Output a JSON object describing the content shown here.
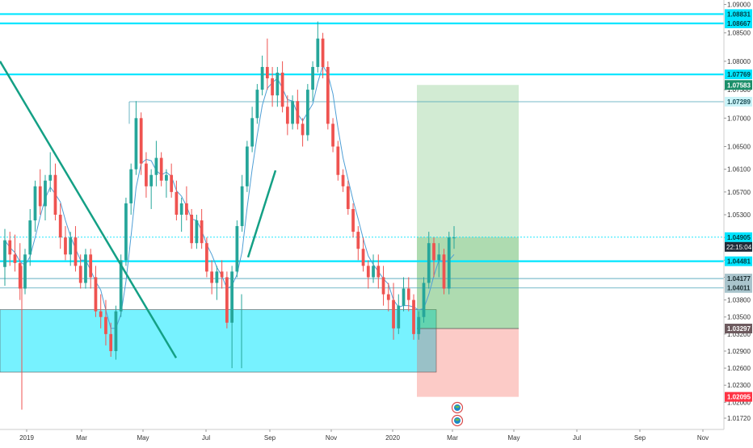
{
  "colors": {
    "up": "#26a69a",
    "down": "#ef5350",
    "ma": "#4f9fd6",
    "level_line": "#00e5ff",
    "level_box": "#5ff0ff",
    "target_zone": "#4caf50",
    "stop_zone": "#f44336",
    "trendline": "#14a085",
    "axis_text": "#333333"
  },
  "chart_data": {
    "type": "candlestick",
    "title": "",
    "ylim": [
      1.0155,
      1.0905
    ],
    "y_ticks": [
      "1.09000",
      "1.08500",
      "1.08000",
      "1.07500",
      "1.07000",
      "1.06500",
      "1.06100",
      "1.05700",
      "1.05300",
      "1.04900",
      "1.04500",
      "1.04200",
      "1.03800",
      "1.03500",
      "1.03200",
      "1.02900",
      "1.02600",
      "1.02300",
      "1.02000",
      "1.01720"
    ],
    "x_ticks": [
      "2019",
      "Mar",
      "May",
      "Jul",
      "Sep",
      "Nov",
      "2020",
      "Mar",
      "May",
      "Jul",
      "Sep",
      "Nov"
    ],
    "price_labels": [
      {
        "value": 1.08831,
        "text": "1.08831",
        "style": "cyan"
      },
      {
        "value": 1.08667,
        "text": "1.08667",
        "style": "cyan"
      },
      {
        "value": 1.07769,
        "text": "1.07769",
        "style": "cyan"
      },
      {
        "value": 1.07583,
        "text": "1.07583",
        "style": "green"
      },
      {
        "value": 1.07289,
        "text": "1.07289",
        "style": "pale"
      },
      {
        "value": 1.04905,
        "text": "1.04905",
        "style": "cyan"
      },
      {
        "value": 1.04481,
        "text": "1.04481",
        "style": "cyan"
      },
      {
        "value": 1.04177,
        "text": "1.04177",
        "style": "grey"
      },
      {
        "value": 1.04011,
        "text": "1.04011",
        "style": "grey"
      },
      {
        "value": 1.03297,
        "text": "1.03297",
        "style": "dark"
      },
      {
        "value": 1.02095,
        "text": "1.02095",
        "style": "red"
      }
    ],
    "countdown_label": "22:15:04",
    "horizontal_levels": [
      1.08831,
      1.08667,
      1.07769,
      1.04481
    ],
    "thin_levels": [
      1.07289,
      1.04905,
      1.04177,
      1.04011
    ],
    "support_zone": [
      1.0253,
      1.0363
    ],
    "position": {
      "entry": 1.04905,
      "target": 1.07583,
      "stop": 1.02095
    },
    "weekly_ohlc": [
      [
        1.0438,
        1.0505,
        1.0405,
        1.0485
      ],
      [
        1.0485,
        1.05,
        1.044,
        1.046
      ],
      [
        1.046,
        1.0495,
        1.043,
        1.0445
      ],
      [
        1.0445,
        1.048,
        1.038,
        1.04
      ],
      [
        1.04,
        1.047,
        1.039,
        1.046
      ],
      [
        1.046,
        1.054,
        1.044,
        1.052
      ],
      [
        1.052,
        1.059,
        1.05,
        1.058
      ],
      [
        1.058,
        1.061,
        1.053,
        1.0545
      ],
      [
        1.0545,
        1.06,
        1.052,
        1.059
      ],
      [
        1.059,
        1.064,
        1.057,
        1.06
      ],
      [
        1.06,
        1.062,
        1.052,
        1.053
      ],
      [
        1.053,
        1.055,
        1.047,
        1.049
      ],
      [
        1.049,
        1.051,
        1.045,
        1.046
      ],
      [
        1.046,
        1.05,
        1.044,
        1.049
      ],
      [
        1.049,
        1.051,
        1.043,
        1.044
      ],
      [
        1.044,
        1.046,
        1.04,
        1.041
      ],
      [
        1.041,
        1.047,
        1.04,
        1.046
      ],
      [
        1.046,
        1.047,
        1.04,
        1.042
      ],
      [
        1.042,
        1.044,
        1.035,
        1.036
      ],
      [
        1.036,
        1.039,
        1.033,
        1.035
      ],
      [
        1.035,
        1.038,
        1.03,
        1.032
      ],
      [
        1.032,
        1.034,
        1.028,
        1.029
      ],
      [
        1.029,
        1.037,
        1.0275,
        1.036
      ],
      [
        1.036,
        1.046,
        1.035,
        1.045
      ],
      [
        1.045,
        1.056,
        1.044,
        1.055
      ],
      [
        1.055,
        1.062,
        1.053,
        1.061
      ],
      [
        1.061,
        1.073,
        1.06,
        1.07
      ],
      [
        1.07,
        1.071,
        1.06,
        1.062
      ],
      [
        1.062,
        1.064,
        1.056,
        1.058
      ],
      [
        1.058,
        1.061,
        1.054,
        1.06
      ],
      [
        1.06,
        1.066,
        1.058,
        1.063
      ],
      [
        1.063,
        1.064,
        1.058,
        1.059
      ],
      [
        1.059,
        1.061,
        1.056,
        1.06
      ],
      [
        1.06,
        1.062,
        1.056,
        1.057
      ],
      [
        1.057,
        1.059,
        1.052,
        1.053
      ],
      [
        1.053,
        1.056,
        1.05,
        1.055
      ],
      [
        1.055,
        1.058,
        1.052,
        1.053
      ],
      [
        1.053,
        1.054,
        1.047,
        1.048
      ],
      [
        1.048,
        1.053,
        1.047,
        1.052
      ],
      [
        1.052,
        1.054,
        1.047,
        1.048
      ],
      [
        1.048,
        1.049,
        1.042,
        1.043
      ],
      [
        1.043,
        1.045,
        1.039,
        1.041
      ],
      [
        1.041,
        1.044,
        1.038,
        1.043
      ],
      [
        1.043,
        1.045,
        1.04,
        1.042
      ],
      [
        1.042,
        1.043,
        1.033,
        1.034
      ],
      [
        1.034,
        1.044,
        1.026,
        1.043
      ],
      [
        1.043,
        1.052,
        1.042,
        1.051
      ],
      [
        1.051,
        1.06,
        1.05,
        1.058
      ],
      [
        1.058,
        1.066,
        1.057,
        1.065
      ],
      [
        1.065,
        1.072,
        1.064,
        1.07
      ],
      [
        1.07,
        1.076,
        1.069,
        1.075
      ],
      [
        1.075,
        1.081,
        1.074,
        1.079
      ],
      [
        1.079,
        1.084,
        1.075,
        1.077
      ],
      [
        1.077,
        1.079,
        1.072,
        1.074
      ],
      [
        1.074,
        1.079,
        1.072,
        1.078
      ],
      [
        1.078,
        1.08,
        1.071,
        1.072
      ],
      [
        1.072,
        1.074,
        1.067,
        1.069
      ],
      [
        1.069,
        1.074,
        1.068,
        1.073
      ],
      [
        1.073,
        1.075,
        1.068,
        1.069
      ],
      [
        1.069,
        1.07,
        1.065,
        1.067
      ],
      [
        1.067,
        1.076,
        1.066,
        1.075
      ],
      [
        1.075,
        1.08,
        1.073,
        1.079
      ],
      [
        1.079,
        1.087,
        1.078,
        1.084
      ],
      [
        1.084,
        1.085,
        1.077,
        1.079
      ],
      [
        1.079,
        1.08,
        1.068,
        1.069
      ],
      [
        1.069,
        1.07,
        1.064,
        1.065
      ],
      [
        1.065,
        1.066,
        1.059,
        1.06
      ],
      [
        1.06,
        1.061,
        1.057,
        1.058
      ],
      [
        1.058,
        1.059,
        1.053,
        1.054
      ],
      [
        1.054,
        1.055,
        1.049,
        1.05
      ],
      [
        1.05,
        1.051,
        1.045,
        1.047
      ],
      [
        1.047,
        1.049,
        1.043,
        1.044
      ],
      [
        1.044,
        1.045,
        1.04,
        1.042
      ],
      [
        1.042,
        1.046,
        1.041,
        1.044
      ],
      [
        1.044,
        1.046,
        1.04,
        1.042
      ],
      [
        1.042,
        1.044,
        1.037,
        1.039
      ],
      [
        1.039,
        1.041,
        1.036,
        1.038
      ],
      [
        1.038,
        1.041,
        1.031,
        1.033
      ],
      [
        1.033,
        1.039,
        1.032,
        1.037
      ],
      [
        1.037,
        1.042,
        1.036,
        1.04
      ],
      [
        1.04,
        1.042,
        1.036,
        1.038
      ],
      [
        1.038,
        1.039,
        1.031,
        1.032
      ],
      [
        1.032,
        1.036,
        1.031,
        1.035
      ],
      [
        1.035,
        1.042,
        1.034,
        1.041
      ],
      [
        1.041,
        1.05,
        1.04,
        1.048
      ],
      [
        1.048,
        1.049,
        1.042,
        1.045
      ],
      [
        1.045,
        1.048,
        1.042,
        1.046
      ],
      [
        1.046,
        1.047,
        1.039,
        1.04
      ],
      [
        1.04,
        1.05,
        1.039,
        1.049
      ],
      [
        1.049,
        1.051,
        1.047,
        1.049
      ]
    ]
  }
}
